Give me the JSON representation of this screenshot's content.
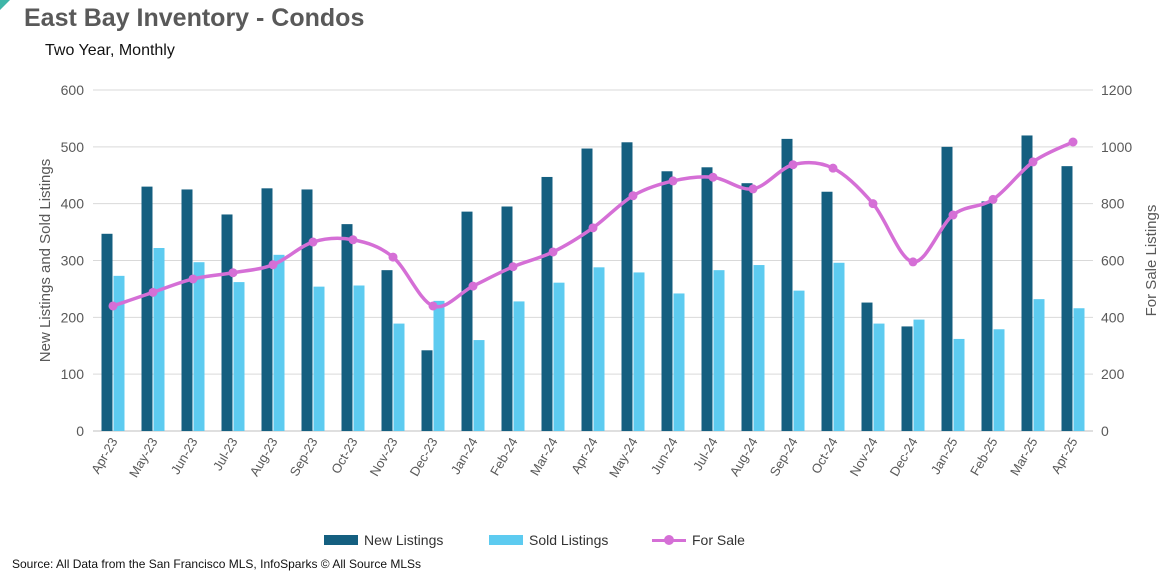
{
  "title": "East Bay Inventory - Condos",
  "subtitle": "Two Year, Monthly",
  "source": "Source: All Data from the San Francisco MLS, InfoSparks © All Source MLSs",
  "colors": {
    "new": "#145f80",
    "sold": "#5dcbf0",
    "forsale": "#d56fd6"
  },
  "chart_data": {
    "type": "bar",
    "combo": "bar+line",
    "categories": [
      "Apr-23",
      "May-23",
      "Jun-23",
      "Jul-23",
      "Aug-23",
      "Sep-23",
      "Oct-23",
      "Nov-23",
      "Dec-23",
      "Jan-24",
      "Feb-24",
      "Mar-24",
      "Apr-24",
      "May-24",
      "Jun-24",
      "Jul-24",
      "Aug-24",
      "Sep-24",
      "Oct-24",
      "Nov-24",
      "Dec-24",
      "Jan-25",
      "Feb-25",
      "Mar-25",
      "Apr-25"
    ],
    "series": [
      {
        "name": "New Listings",
        "type": "bar",
        "axis": "left",
        "values": [
          347,
          430,
          425,
          381,
          427,
          425,
          364,
          283,
          142,
          386,
          395,
          447,
          497,
          508,
          457,
          464,
          436,
          514,
          421,
          226,
          184,
          500,
          404,
          520,
          466
        ]
      },
      {
        "name": "Sold Listings",
        "type": "bar",
        "axis": "left",
        "values": [
          273,
          322,
          297,
          262,
          310,
          254,
          256,
          189,
          229,
          160,
          228,
          261,
          288,
          279,
          242,
          283,
          292,
          247,
          296,
          189,
          196,
          162,
          179,
          232,
          216
        ]
      },
      {
        "name": "For Sale",
        "type": "line",
        "axis": "right",
        "values": [
          440,
          488,
          535,
          557,
          585,
          665,
          673,
          612,
          440,
          510,
          578,
          630,
          715,
          828,
          880,
          893,
          852,
          937,
          925,
          800,
          595,
          760,
          815,
          947,
          1017
        ]
      }
    ],
    "ylabel": "New Listings and Sold Listings",
    "y2label": "For Sale Listings",
    "ylim": [
      0,
      600
    ],
    "y2lim": [
      0,
      1200
    ],
    "yticks": [
      "0",
      "100",
      "200",
      "300",
      "400",
      "500",
      "600"
    ],
    "y2ticks": [
      "0",
      "200",
      "400",
      "600",
      "800",
      "1000",
      "1200"
    ],
    "grid": true,
    "legend": "bottom"
  }
}
